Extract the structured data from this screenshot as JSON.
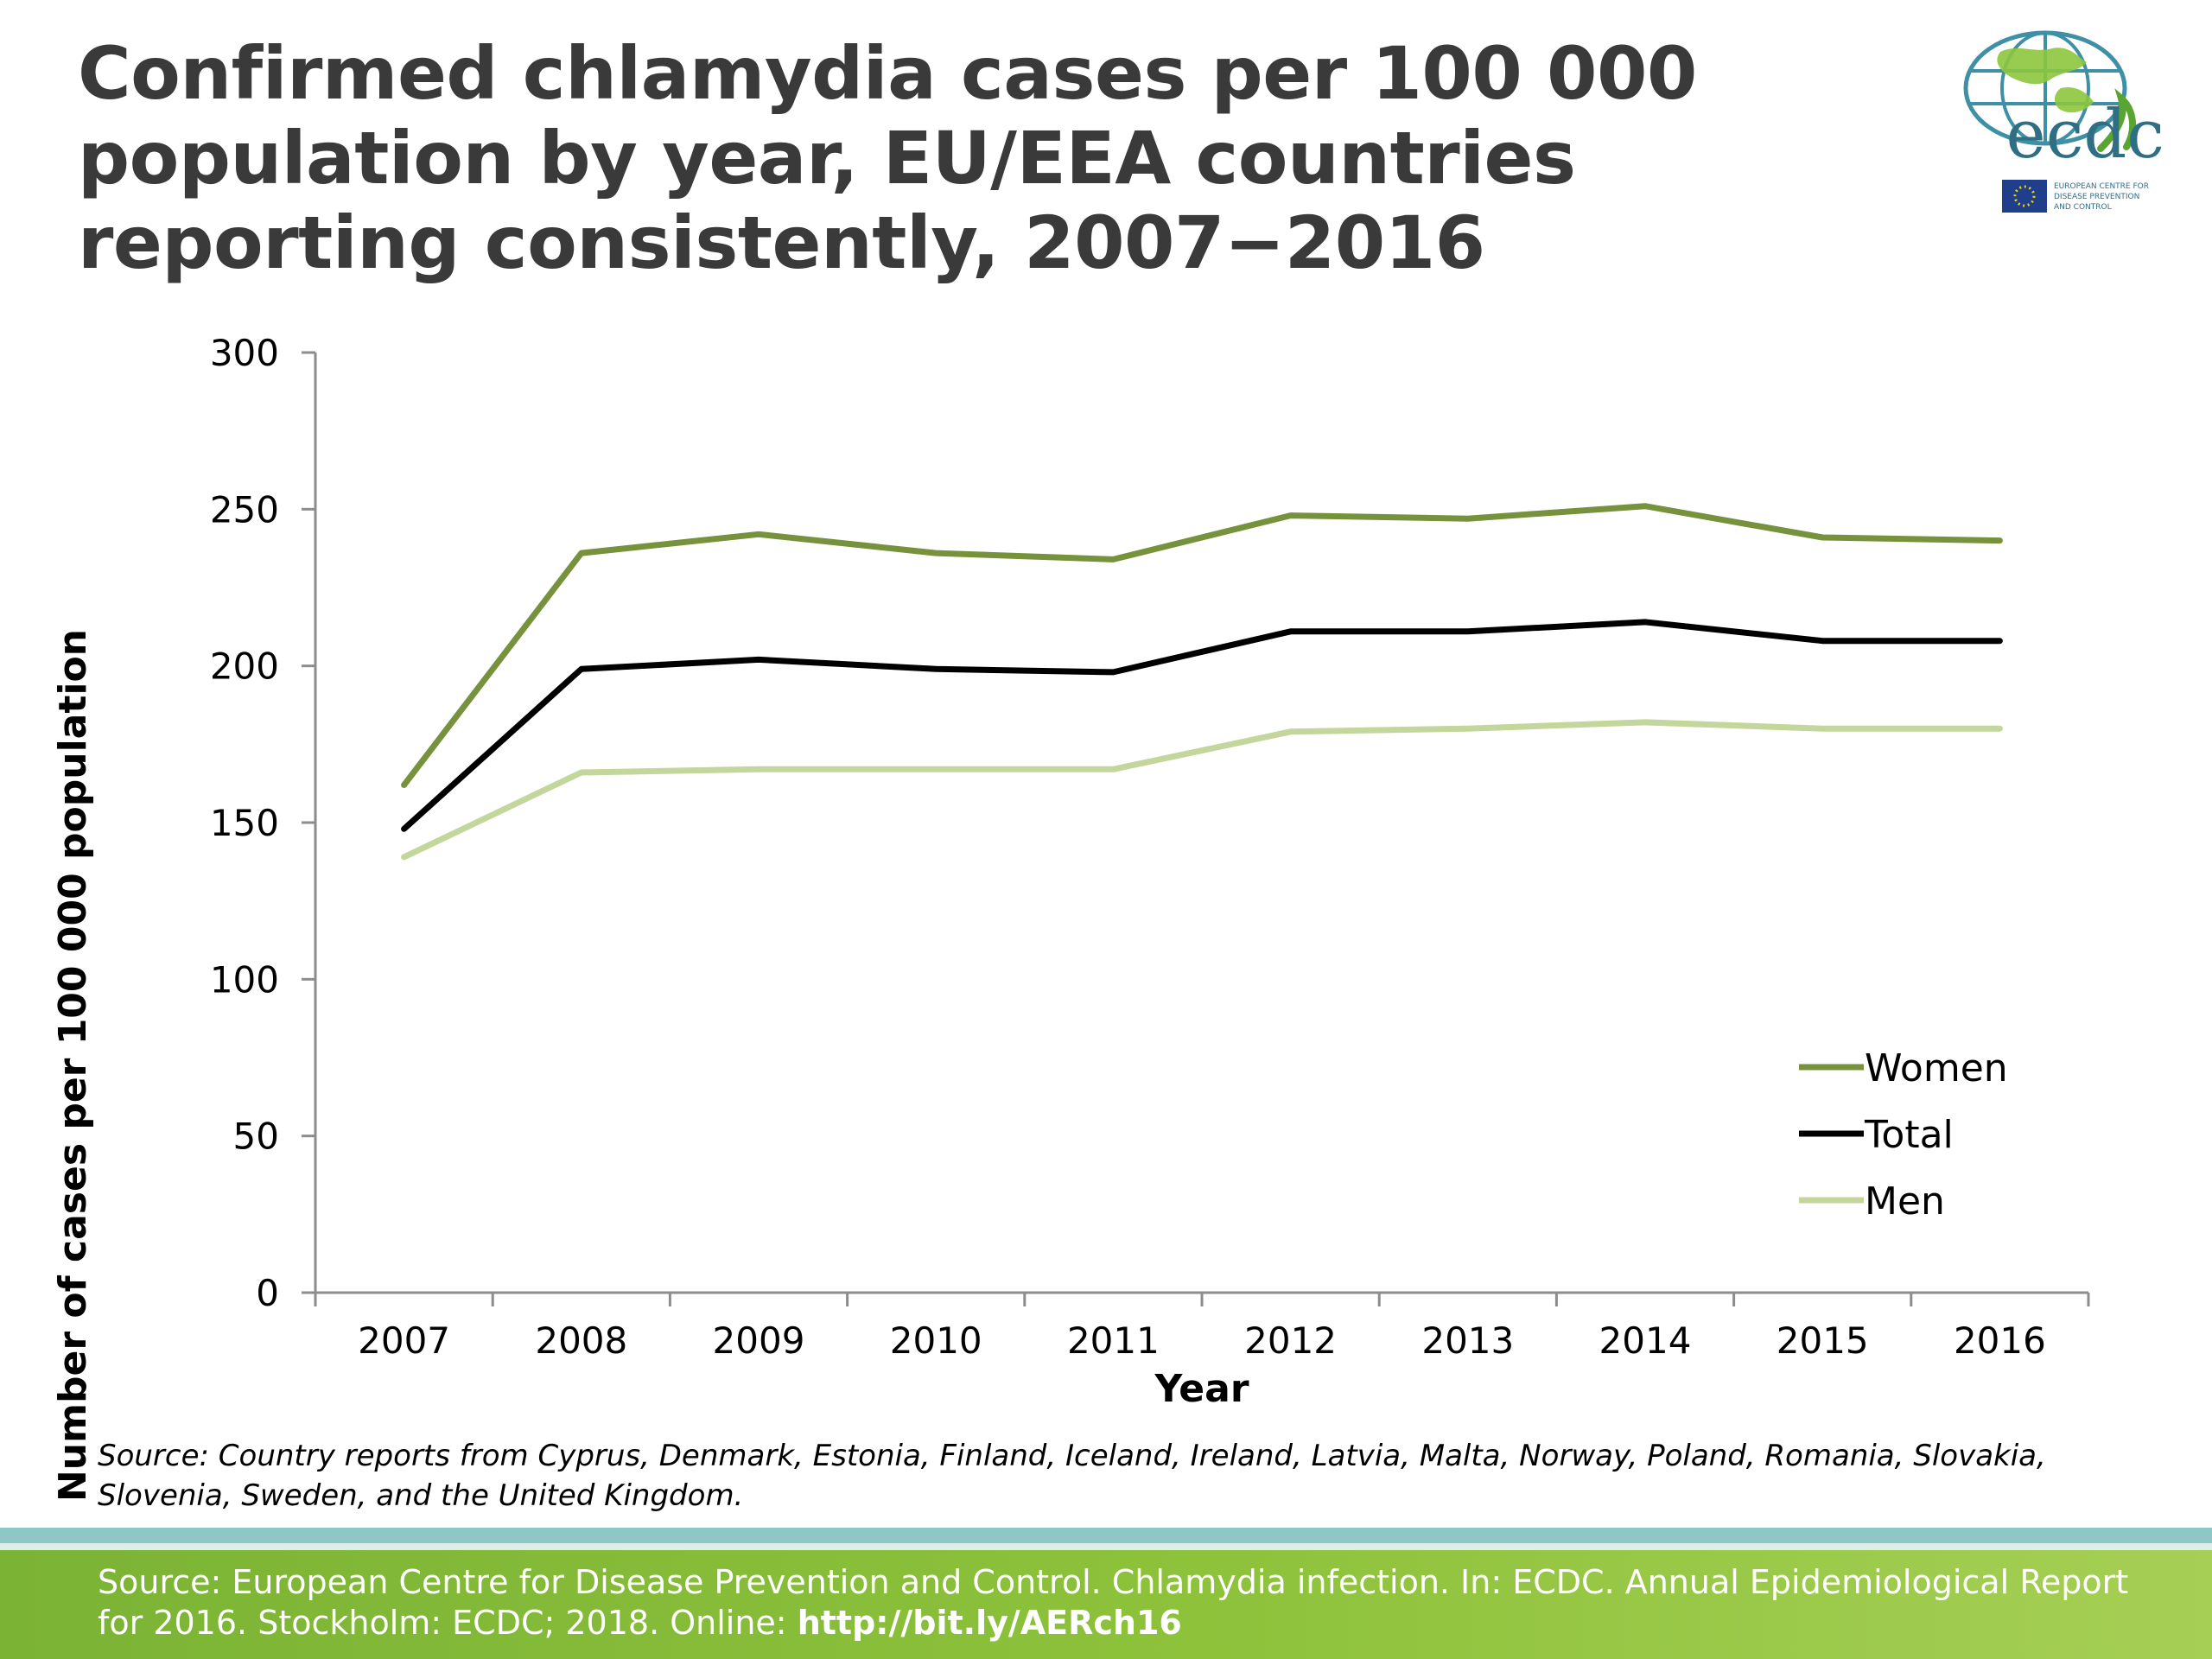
{
  "header": {
    "title": "Confirmed chlamydia cases per 100 000 population by year, EU/EEA countries reporting consistently, 2007−2016"
  },
  "logo": {
    "name": "ecdc",
    "subtitle_lines": [
      "EUROPEAN CENTRE FOR",
      "DISEASE PREVENTION",
      "AND CONTROL"
    ]
  },
  "chart_data": {
    "type": "line",
    "x": [
      "2007",
      "2008",
      "2009",
      "2010",
      "2011",
      "2012",
      "2013",
      "2014",
      "2015",
      "2016"
    ],
    "series": [
      {
        "name": "Women",
        "color": "#76923c",
        "values": [
          162,
          236,
          242,
          236,
          234,
          248,
          247,
          251,
          241,
          240
        ]
      },
      {
        "name": "Total",
        "color": "#000000",
        "values": [
          148,
          199,
          202,
          199,
          198,
          211,
          211,
          214,
          208,
          208
        ]
      },
      {
        "name": "Men",
        "color": "#c3d69b",
        "values": [
          139,
          166,
          167,
          167,
          167,
          179,
          180,
          182,
          180,
          180
        ]
      }
    ],
    "xlabel": "Year",
    "ylabel": "Number of cases per 100 000 population",
    "ylim": [
      0,
      300
    ],
    "yticks": [
      0,
      50,
      100,
      150,
      200,
      250,
      300
    ],
    "grid": false,
    "legend": "bottom-right"
  },
  "source_note": "Source: Country reports from Cyprus, Denmark, Estonia, Finland, Iceland, Ireland, Latvia, Malta, Norway, Poland, Romania, Slovakia, Slovenia, Sweden, and the United Kingdom.",
  "footer": {
    "citation": "Source: European Centre for Disease Prevention and Control. Chlamydia infection. In: ECDC. Annual Epidemiological Report for 2016. Stockholm: ECDC; 2018. Online: ",
    "link": "http://bit.ly/AERch16"
  }
}
